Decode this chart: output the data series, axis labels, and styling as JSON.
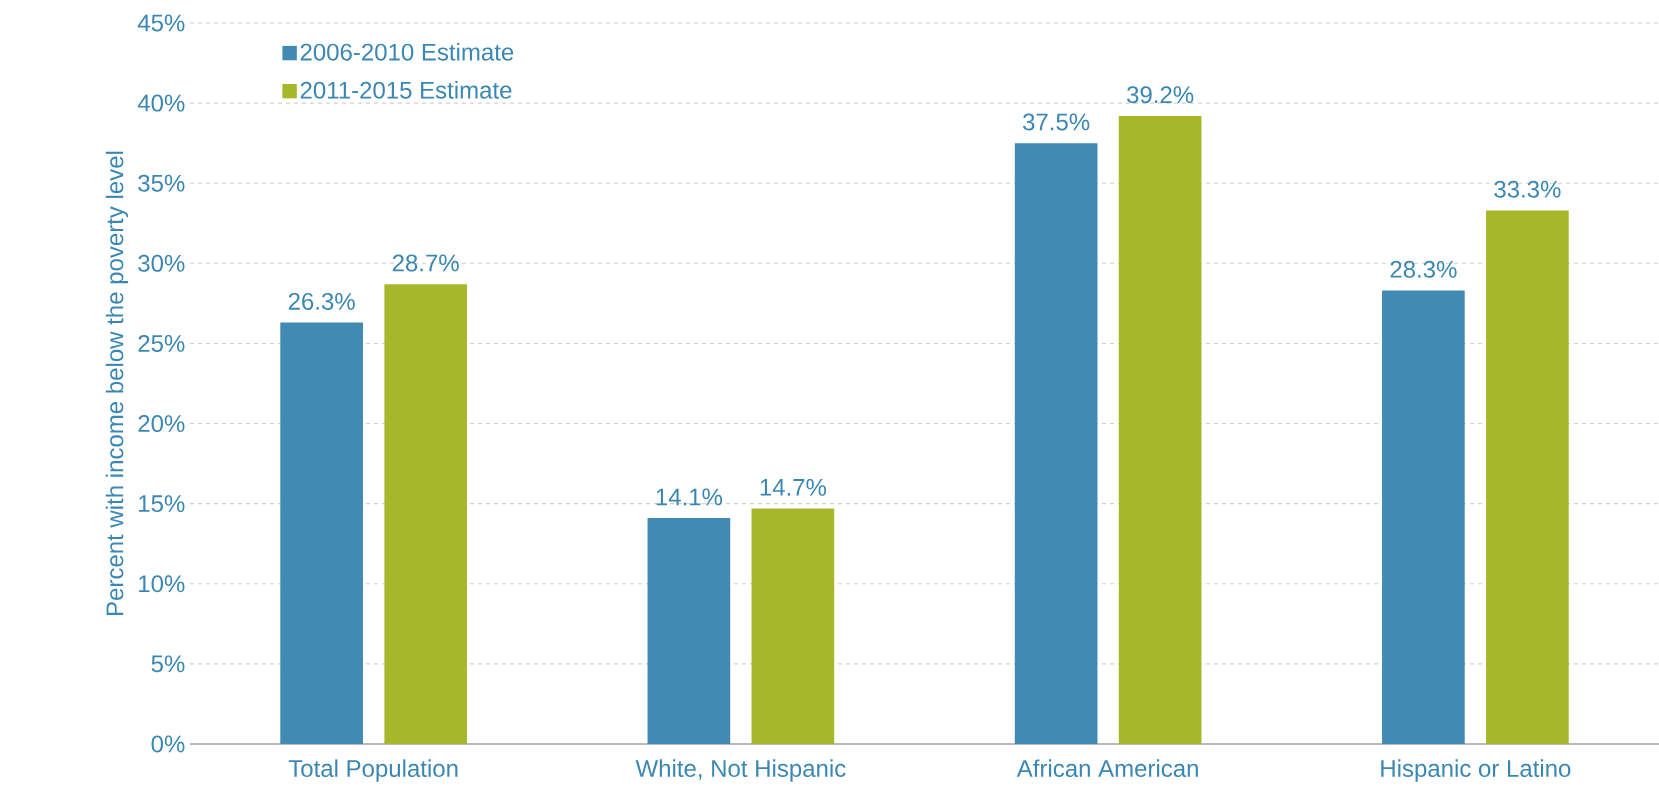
{
  "chart_data": {
    "type": "bar",
    "ylabel": "Percent with income below the poverty level",
    "categories": [
      "Total Population",
      "White, Not Hispanic",
      "African American",
      "Hispanic or Latino"
    ],
    "series": [
      {
        "name": "2006-2010 Estimate",
        "color": "#418ab4",
        "values": [
          26.3,
          14.1,
          37.5,
          28.3
        ],
        "value_labels": [
          "26.3%",
          "14.1%",
          "37.5%",
          "28.3%"
        ]
      },
      {
        "name": "2011-2015 Estimate",
        "color": "#a6b829",
        "values": [
          28.7,
          14.7,
          39.2,
          33.3
        ],
        "value_labels": [
          "28.7%",
          "14.7%",
          "39.2%",
          "33.3%"
        ]
      }
    ],
    "ylim": [
      0,
      45
    ],
    "yticks": [
      {
        "value": 0,
        "label": "0%"
      },
      {
        "value": 5,
        "label": "5%"
      },
      {
        "value": 10,
        "label": "10%"
      },
      {
        "value": 15,
        "label": "15%"
      },
      {
        "value": 20,
        "label": "20%"
      },
      {
        "value": 25,
        "label": "25%"
      },
      {
        "value": 30,
        "label": "30%"
      },
      {
        "value": 35,
        "label": "35%"
      },
      {
        "value": 40,
        "label": "40%"
      },
      {
        "value": 45,
        "label": "45%"
      }
    ],
    "grid": "y",
    "legend": "top left"
  }
}
